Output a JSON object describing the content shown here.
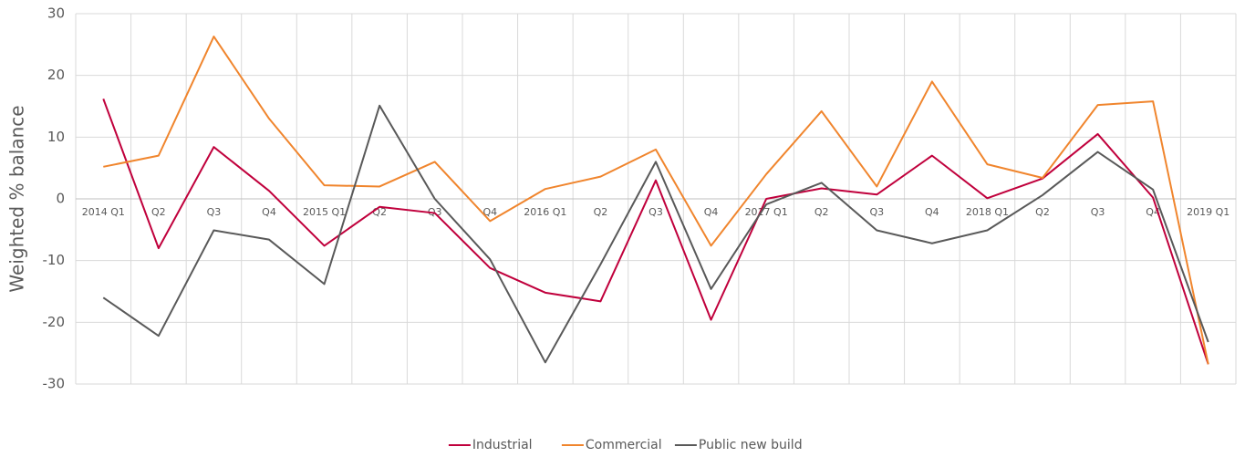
{
  "chart_data": {
    "type": "line",
    "y_label": "Weighted % balance",
    "categories": [
      "2014 Q1",
      "Q2",
      "Q3",
      "Q4",
      "2015 Q1",
      "Q2",
      "Q3",
      "Q4",
      "2016 Q1",
      "Q2",
      "Q3",
      "Q4",
      "2017 Q1",
      "Q2",
      "Q3",
      "Q4",
      "2018 Q1",
      "Q2",
      "Q3",
      "Q4",
      "2019 Q1"
    ],
    "series": [
      {
        "name": "Industrial",
        "color": "#c0003c",
        "values": [
          16.2,
          -8,
          8.4,
          1.3,
          -7.6,
          -1.3,
          -2.3,
          -11.2,
          -15.2,
          -16.6,
          3,
          -19.6,
          0,
          1.7,
          0.7,
          7,
          0.1,
          3.3,
          10.5,
          0.2,
          -26.8
        ]
      },
      {
        "name": "Commercial",
        "color": "#f0852d",
        "values": [
          5.2,
          7,
          26.3,
          13,
          2.2,
          2,
          6,
          -3.6,
          1.6,
          3.6,
          8,
          -7.6,
          4,
          14.2,
          2,
          19,
          5.6,
          3.4,
          15.2,
          15.8,
          -26.8
        ]
      },
      {
        "name": "Public new build",
        "color": "#595959",
        "values": [
          -16,
          -22.2,
          -5.1,
          -6.6,
          -13.8,
          15.1,
          0,
          -9.8,
          -26.5,
          -10.6,
          6,
          -14.6,
          -0.9,
          2.6,
          -5.1,
          -7.2,
          -5.1,
          0.6,
          7.6,
          1.5,
          -23.2
        ]
      }
    ],
    "ylim": [
      -30,
      30
    ],
    "yticks": [
      30,
      20,
      10,
      0,
      -10,
      -20,
      -30
    ],
    "grid": true,
    "legend": "bottom"
  }
}
